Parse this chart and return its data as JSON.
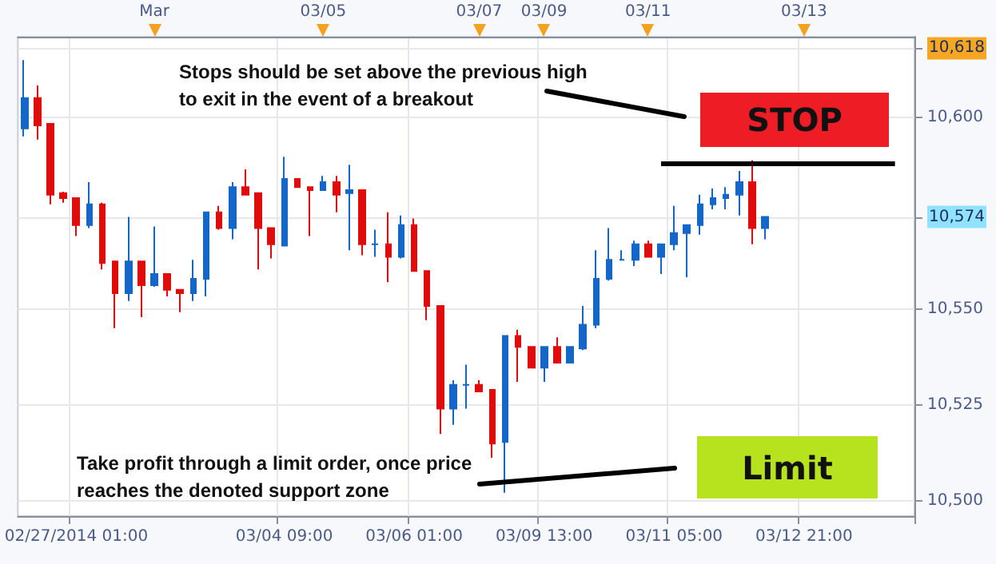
{
  "chart_data": {
    "type": "candlestick",
    "categories": [
      null,
      null,
      null,
      null,
      "02/27/2014 01:00",
      null,
      null,
      null,
      null,
      null,
      null,
      null,
      null,
      null,
      null,
      null,
      null,
      null,
      null,
      null,
      "03/04 09:00",
      null,
      null,
      null,
      null,
      null,
      null,
      null,
      null,
      null,
      "03/06 01:00",
      null,
      null,
      null,
      null,
      null,
      null,
      null,
      null,
      null,
      "03/09 13:00",
      null,
      null,
      null,
      null,
      null,
      null,
      null,
      null,
      null,
      "03/11 05:00",
      null,
      null,
      null,
      null,
      null,
      null,
      null,
      null,
      null,
      "03/12 21:00",
      null,
      null,
      null,
      null,
      null,
      null,
      null,
      null
    ],
    "ohlc": [
      [
        10597.1,
        10614.9,
        10595.0,
        10605.0
      ],
      [
        10605.0,
        10608.3,
        10594.2,
        10597.9
      ],
      [
        10598.3,
        10598.3,
        10577.3,
        10579.8
      ],
      [
        10580.2,
        10580.6,
        10577.7,
        10578.9
      ],
      [
        10578.9,
        10578.9,
        10569.0,
        10571.9
      ],
      [
        10571.9,
        10583.1,
        10571.1,
        10577.3
      ],
      [
        10577.3,
        10577.7,
        10560.3,
        10562.0
      ],
      [
        10562.4,
        10562.4,
        10545.0,
        10554.1
      ],
      [
        10554.1,
        10574.0,
        10552.1,
        10562.4
      ],
      [
        10562.4,
        10562.4,
        10547.9,
        10556.2
      ],
      [
        10556.2,
        10571.5,
        10555.8,
        10559.1
      ],
      [
        10559.1,
        10559.1,
        10553.3,
        10555.0
      ],
      [
        10555.0,
        10555.0,
        10549.2,
        10554.1
      ],
      [
        10554.1,
        10562.8,
        10552.1,
        10557.9
      ],
      [
        10557.9,
        10575.2,
        10553.3,
        10575.2
      ],
      [
        10575.2,
        10576.9,
        10570.7,
        10571.1
      ],
      [
        10571.1,
        10583.1,
        10568.2,
        10581.8
      ],
      [
        10581.8,
        10586.4,
        10579.8,
        10579.8
      ],
      [
        10580.2,
        10580.2,
        10560.3,
        10571.1
      ],
      [
        10571.1,
        10571.1,
        10563.2,
        10566.9
      ],
      [
        10566.5,
        10589.7,
        10566.5,
        10583.9
      ],
      [
        10583.9,
        10583.9,
        10581.8,
        10581.8
      ],
      [
        10581.8,
        10581.8,
        10569.0,
        10581.0
      ],
      [
        10581.0,
        10584.7,
        10581.0,
        10583.1
      ],
      [
        10583.1,
        10584.7,
        10575.2,
        10579.8
      ],
      [
        10580.2,
        10587.6,
        10565.3,
        10581.0
      ],
      [
        10581.0,
        10581.0,
        10564.0,
        10566.9
      ],
      [
        10566.9,
        10570.7,
        10563.6,
        10566.9
      ],
      [
        10566.9,
        10575.2,
        10557.0,
        10563.6
      ],
      [
        10563.6,
        10574.4,
        10563.2,
        10571.9
      ],
      [
        10571.9,
        10573.6,
        10559.9,
        10559.9
      ],
      [
        10559.9,
        10559.9,
        10547.1,
        10550.8
      ],
      [
        10550.8,
        10550.8,
        10517.4,
        10524.0
      ],
      [
        10524.0,
        10531.4,
        10519.8,
        10530.2
      ],
      [
        10530.2,
        10535.5,
        10524.0,
        10530.2
      ],
      [
        10530.2,
        10531.4,
        10528.5,
        10528.5
      ],
      [
        10528.9,
        10528.9,
        10511.2,
        10514.9
      ],
      [
        10515.3,
        10543.0,
        10502.1,
        10543.0
      ],
      [
        10543.0,
        10544.6,
        10531.0,
        10540.1
      ],
      [
        10540.1,
        10540.1,
        10534.7,
        10534.7
      ],
      [
        10534.7,
        10540.1,
        10531.0,
        10540.1
      ],
      [
        10540.1,
        10542.6,
        10536.0,
        10536.0
      ],
      [
        10536.0,
        10540.1,
        10536.0,
        10540.1
      ],
      [
        10539.7,
        10550.8,
        10539.3,
        10545.9
      ],
      [
        10545.9,
        10565.3,
        10545.0,
        10557.9
      ],
      [
        10557.9,
        10571.1,
        10557.4,
        10562.8
      ],
      [
        10562.8,
        10565.3,
        10562.8,
        10562.8
      ],
      [
        10562.8,
        10567.8,
        10561.2,
        10566.9
      ],
      [
        10566.9,
        10567.8,
        10563.6,
        10563.6
      ],
      [
        10563.6,
        10566.9,
        10559.1,
        10566.9
      ],
      [
        10566.9,
        10576.9,
        10565.3,
        10569.8
      ],
      [
        10569.8,
        10571.9,
        10558.3,
        10571.9
      ],
      [
        10571.9,
        10579.8,
        10569.4,
        10577.3
      ],
      [
        10577.3,
        10581.4,
        10576.0,
        10578.9
      ],
      [
        10578.9,
        10581.8,
        10576.0,
        10579.8
      ],
      [
        10579.8,
        10586.0,
        10574.4,
        10583.1
      ],
      [
        10583.1,
        10588.8,
        10566.9,
        10571.1
      ],
      [
        10571.1,
        10574.0,
        10568.2,
        10574.0
      ],
      null,
      null,
      null,
      null,
      null,
      null,
      null,
      null,
      null,
      null,
      null
    ],
    "ylim": [
      10496,
      10621
    ],
    "yticks": [
      {
        "value": 10500,
        "label": "10,500"
      },
      {
        "value": 10525,
        "label": "10,525"
      },
      {
        "value": 10550,
        "label": "10,550"
      },
      {
        "value": 10574,
        "label": "10,574"
      },
      {
        "value": 10600,
        "label": "10,600"
      },
      {
        "value": 10618,
        "label": "10,618"
      }
    ],
    "ref_lines": [
      {
        "axis": "y",
        "value": 10588,
        "color": "#000000"
      }
    ],
    "grid": true,
    "annotations": [
      "Stops should be set above the previous high to exit in the event of a breakout",
      "Take profit through a limit order, once price reaches the denoted support zone",
      "STOP",
      "Limit",
      "Mar",
      "03/05",
      "03/07",
      "03/09",
      "03/11",
      "03/13"
    ]
  }
}
